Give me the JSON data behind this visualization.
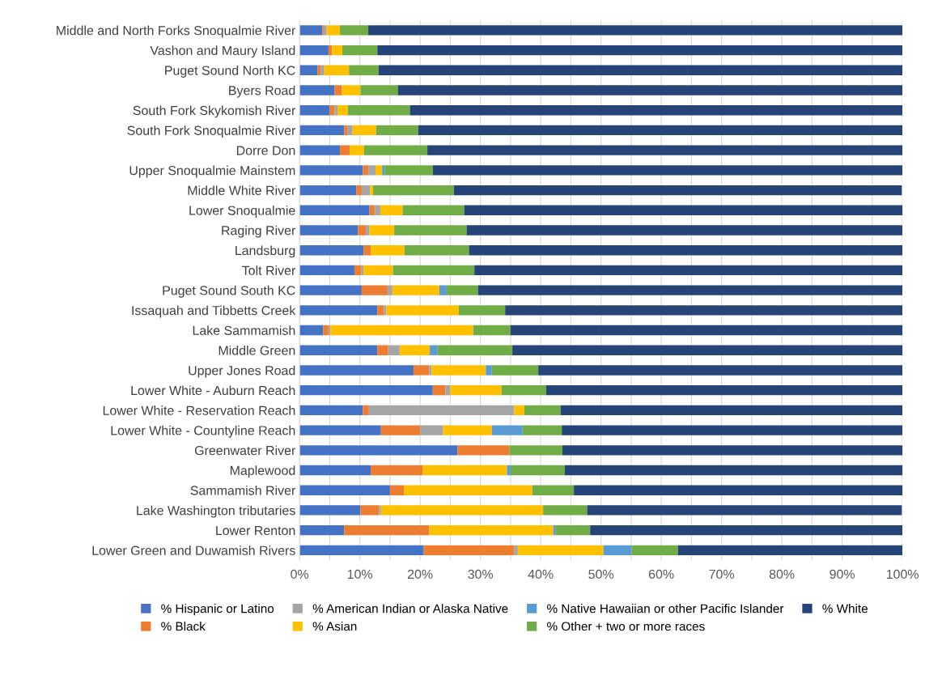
{
  "chart_data": {
    "type": "bar",
    "orientation": "horizontal",
    "stacked": true,
    "categories": [
      "Middle and North Forks Snoqualmie River",
      "Vashon and Maury Island",
      "Puget Sound North KC",
      "Byers Road",
      "South Fork Skykomish River",
      "South Fork Snoqualmie River",
      "Dorre Don",
      "Upper Snoqualmie Mainstem",
      "Middle White River",
      "Lower Snoqualmie",
      "Raging River",
      "Landsburg",
      "Tolt River",
      "Puget Sound South KC",
      "Issaquah and Tibbetts Creek",
      "Lake Sammamish",
      "Middle Green",
      "Upper Jones Road",
      "Lower White - Auburn Reach",
      "Lower White - Reservation Reach",
      "Lower White - Countyline Reach",
      "Greenwater River",
      "Maplewood",
      "Sammamish River",
      "Lake Washington tributaries",
      "Lower Renton",
      "Lower Green and Duwamish Rivers"
    ],
    "series": [
      {
        "name": "% Hispanic or Latino",
        "color": "#4472c4",
        "values": [
          3.8,
          4.8,
          3.0,
          5.8,
          5.0,
          7.4,
          6.7,
          10.5,
          9.4,
          11.6,
          9.7,
          10.6,
          9.1,
          10.3,
          12.9,
          3.9,
          12.9,
          18.9,
          22.1,
          10.5,
          13.5,
          26.2,
          11.8,
          15.0,
          10.1,
          7.4,
          20.6
        ]
      },
      {
        "name": "% Black",
        "color": "#ed7d31",
        "values": [
          0.2,
          0.6,
          0.5,
          1.2,
          0.8,
          0.6,
          1.6,
          0.9,
          0.9,
          0.9,
          1.3,
          1.2,
          1.1,
          4.3,
          1.1,
          0.9,
          1.8,
          2.6,
          2.1,
          1.0,
          6.5,
          8.6,
          8.6,
          2.3,
          3.1,
          14.1,
          15.0
        ]
      },
      {
        "name": "% American Indian or Alaska Native",
        "color": "#a5a5a5",
        "values": [
          0.5,
          0,
          0.6,
          0,
          0.5,
          0.8,
          0,
          1.2,
          1.4,
          0.9,
          0.6,
          0,
          0.4,
          0.8,
          0.4,
          0.3,
          1.9,
          0.4,
          0.8,
          24.1,
          3.8,
          0,
          0,
          0,
          0.3,
          0,
          0.6
        ]
      },
      {
        "name": "% Asian",
        "color": "#ffc000",
        "values": [
          2.2,
          1.7,
          4.1,
          3.1,
          1.7,
          3.9,
          2.4,
          1.1,
          0.5,
          3.7,
          4.1,
          5.6,
          4.9,
          7.8,
          12.0,
          23.7,
          5.0,
          9.0,
          8.5,
          1.7,
          8.1,
          0,
          14.0,
          21.3,
          26.9,
          20.6,
          14.2
        ]
      },
      {
        "name": "% Native Hawaiian or other Pacific Islander",
        "color": "#5b9bd5",
        "values": [
          0,
          0,
          0,
          0,
          0,
          0,
          0,
          0.4,
          0,
          0,
          0,
          0,
          0,
          1.2,
          0,
          0,
          1.3,
          1.0,
          0,
          0,
          5.1,
          0,
          0.6,
          0,
          0,
          0.4,
          4.7
        ]
      },
      {
        "name": "% Other + two or more races",
        "color": "#70ad47",
        "values": [
          4.7,
          5.8,
          4.9,
          6.2,
          10.3,
          7.0,
          10.5,
          8.0,
          13.4,
          10.2,
          12.0,
          10.7,
          13.5,
          5.2,
          7.7,
          6.2,
          12.4,
          7.7,
          7.4,
          6.0,
          6.5,
          8.8,
          9.0,
          6.9,
          7.3,
          5.7,
          7.7
        ]
      },
      {
        "name": "% White",
        "color": "#264478",
        "values": [
          88.6,
          87.1,
          86.9,
          83.7,
          81.7,
          80.3,
          78.8,
          77.9,
          74.3,
          72.8,
          72.3,
          71.9,
          71.0,
          70.4,
          65.9,
          65.1,
          64.9,
          60.4,
          59.1,
          56.7,
          56.5,
          56.5,
          56.1,
          54.6,
          52.2,
          51.8,
          37.2
        ]
      }
    ],
    "xlim": [
      0,
      100
    ],
    "xticks": [
      {
        "value": 0,
        "label": "0%"
      },
      {
        "value": 5,
        "label": null
      },
      {
        "value": 10,
        "label": "10%"
      },
      {
        "value": 15,
        "label": null
      },
      {
        "value": 20,
        "label": "20%"
      },
      {
        "value": 25,
        "label": null
      },
      {
        "value": 30,
        "label": "30%"
      },
      {
        "value": 35,
        "label": null
      },
      {
        "value": 40,
        "label": "40%"
      },
      {
        "value": 45,
        "label": null
      },
      {
        "value": 50,
        "label": "50%"
      },
      {
        "value": 55,
        "label": null
      },
      {
        "value": 60,
        "label": "60%"
      },
      {
        "value": 65,
        "label": null
      },
      {
        "value": 70,
        "label": "70%"
      },
      {
        "value": 75,
        "label": null
      },
      {
        "value": 80,
        "label": "80%"
      },
      {
        "value": 85,
        "label": null
      },
      {
        "value": 90,
        "label": "90%"
      },
      {
        "value": 95,
        "label": null
      },
      {
        "value": 100,
        "label": "100%"
      }
    ],
    "grid": "x",
    "legend": "bottom"
  }
}
